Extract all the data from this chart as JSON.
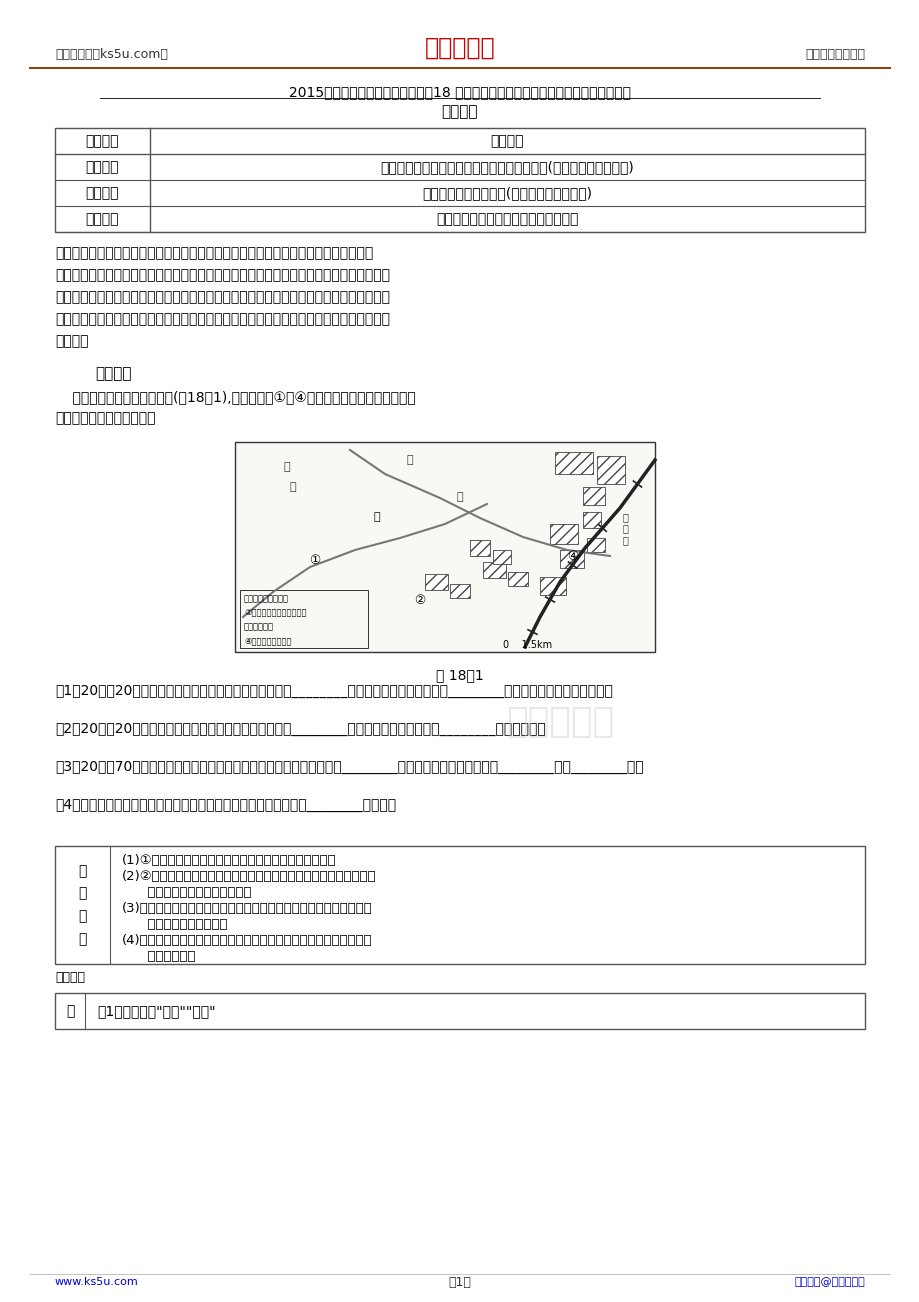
{
  "header_left": "高考资源网（ks5u.com）",
  "header_center": "高考资源网",
  "header_right": "您身边的高考专家",
  "title_line1": "2015全品高考地理特色讲练：类型18 影响商业中心、商业网点形成的区位因素分析类",
  "title_line2": "思维建模",
  "table1_headers": [
    "分析角度",
    "答题模板"
  ],
  "table1_rows": [
    [
      "交通条件",
      "便利的交通条件：环路或市区边缘，公路沿线(设立原则：交通最优)"
    ],
    [
      "市场条件",
      "广阔的市场或经济腹地(设立原则：市场最优)"
    ],
    [
      "商品供应",
      "较强的商品生产能力、稳定的商品来源"
    ]
  ],
  "diantishipan": "典题示范",
  "fig_label": "图 18－1",
  "questions": [
    "（1）20世纪20年代，安徽阜阳城北商业贸易繁荣，原因是________是阜阳对外交通口岸，说明________对城市址的选择有很大影响。",
    "（2）20世纪20年代后，商业中心移至三里河一带，原因是________，说明城市的商业中心向________的位置移动。",
    "（3）20世纪70年代后，淮南铁路、京九铁路相继建成，阜阳成为重要的________城市，火车站附近形成城东________区和________区。",
    "（4）阜阳对外交通口岸先后发生了三次重大变迁，说明交通因素对________的影响。"
  ],
  "ana_lines": [
    "(1)①处位为泉河沿岸，因内河航运便利而形成商业码头区",
    "(2)②处位于泉河与颍河交汇处，因泉河淤塞，商业码头移至此处，而",
    "      商业中心随之移至三里河一带",
    "(3)铁路的修建，使城区向火车站附近扩展，且主要布局对交通条件要",
    "      求高的工业区和仓库区",
    "(4)阜阳交通口岸的变迁，说明交通对城市空间地域形态和商业中心的",
    "      位置都有影响"
  ],
  "tiji_lines": [
    "【提醒】自然、社会、经济等因素共同影响、制约商业网点的布局。自然条件是商业网",
    "点形成和发展的必要前提，平原地区可沿公路线布局，山区可沿谷地布局。自然环境相对恶",
    "劣、人口稀少的地区，交通闭塞，商业网点很难建立和发展，多采用流动服务的形式；而在",
    "人口密集、交通方便的地区，商业网点的设置可以采用相应规模的固定形式，如商业街或商",
    "业小区。"
  ],
  "qi_lines": [
    "    读安徽省阜阳市城区扩展图(图18－1),其中箭头及①～④为其城区随时间扩展的方向及",
    "范围。据此回答下列问题。"
  ],
  "table3_ans_content": "（1）必须体现\"泉河\"\"河流\"",
  "footer_left": "www.ks5u.com",
  "footer_center": "－1－",
  "footer_right": "版权所有@高考资源网",
  "bg_color": "#ffffff",
  "text_color": "#000000",
  "red_color": "#cc0000",
  "blue_color": "#0000cc",
  "header_line_color": "#8B4513",
  "table_border_color": "#555555"
}
